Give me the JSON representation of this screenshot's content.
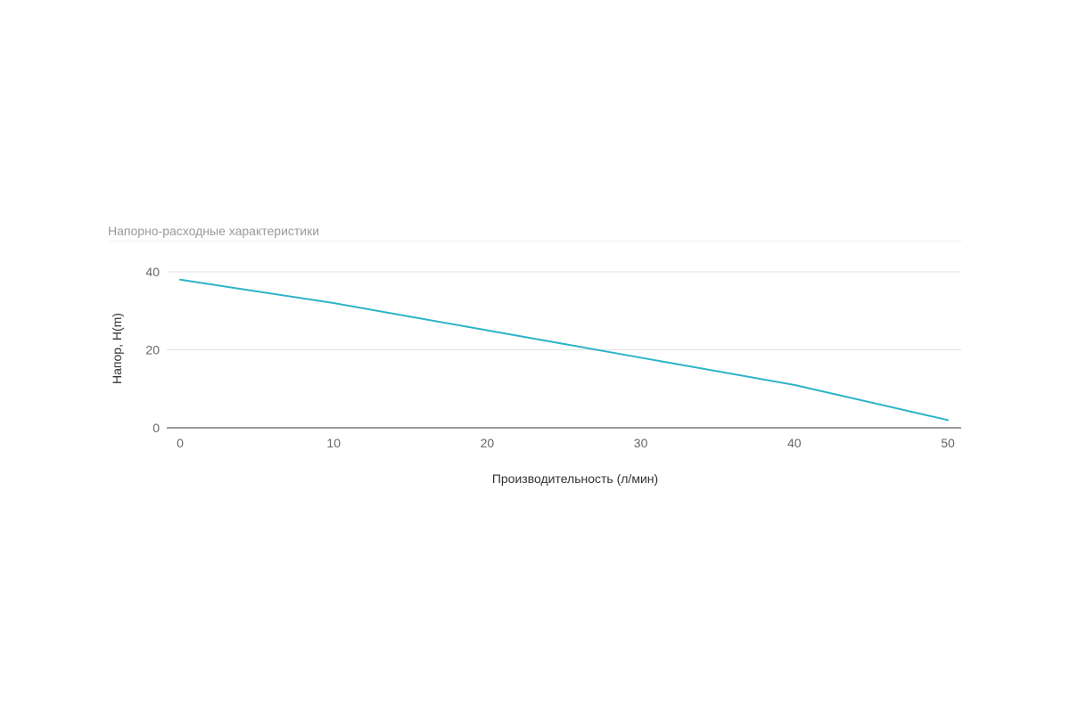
{
  "chart_data": {
    "type": "line",
    "title": "Напорно-расходные характеристики",
    "xlabel": "Производительность (л/мин)",
    "ylabel": "Напор, H(m)",
    "x": [
      0,
      10,
      20,
      30,
      40,
      50
    ],
    "series": [
      {
        "values": [
          38,
          32,
          25,
          18,
          11,
          2
        ],
        "color": "#2cb3c8"
      }
    ],
    "x_ticks": [
      "0",
      "10",
      "20",
      "30",
      "40",
      "50"
    ],
    "y_ticks": [
      "0",
      "20",
      "40"
    ],
    "xlim": [
      0,
      50
    ],
    "ylim": [
      0,
      40
    ],
    "grid": true,
    "legend": "none"
  }
}
